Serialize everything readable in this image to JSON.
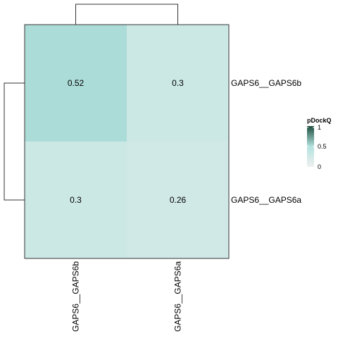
{
  "chart_data": {
    "type": "heatmap",
    "rows": [
      "GAPS6__GAPS6b",
      "GAPS6__GAPS6a"
    ],
    "columns": [
      "GAPS6__GAPS6b",
      "GAPS6__GAPS6a"
    ],
    "values": [
      [
        0.52,
        0.3
      ],
      [
        0.3,
        0.26
      ]
    ],
    "value_labels": [
      [
        "0.52",
        "0.3"
      ],
      [
        "0.3",
        "0.26"
      ]
    ],
    "legend": {
      "title": "pDockQ",
      "ticks": [
        {
          "value": 1,
          "label": "1"
        },
        {
          "value": 0.5,
          "label": "0.5"
        },
        {
          "value": 0,
          "label": "0"
        }
      ],
      "range": [
        0,
        1
      ],
      "colors": [
        "#f0f0f0",
        "#b2e2de",
        "#1e4d3e"
      ]
    },
    "dendrograms": {
      "rows": true,
      "columns": true
    },
    "grid": false
  }
}
